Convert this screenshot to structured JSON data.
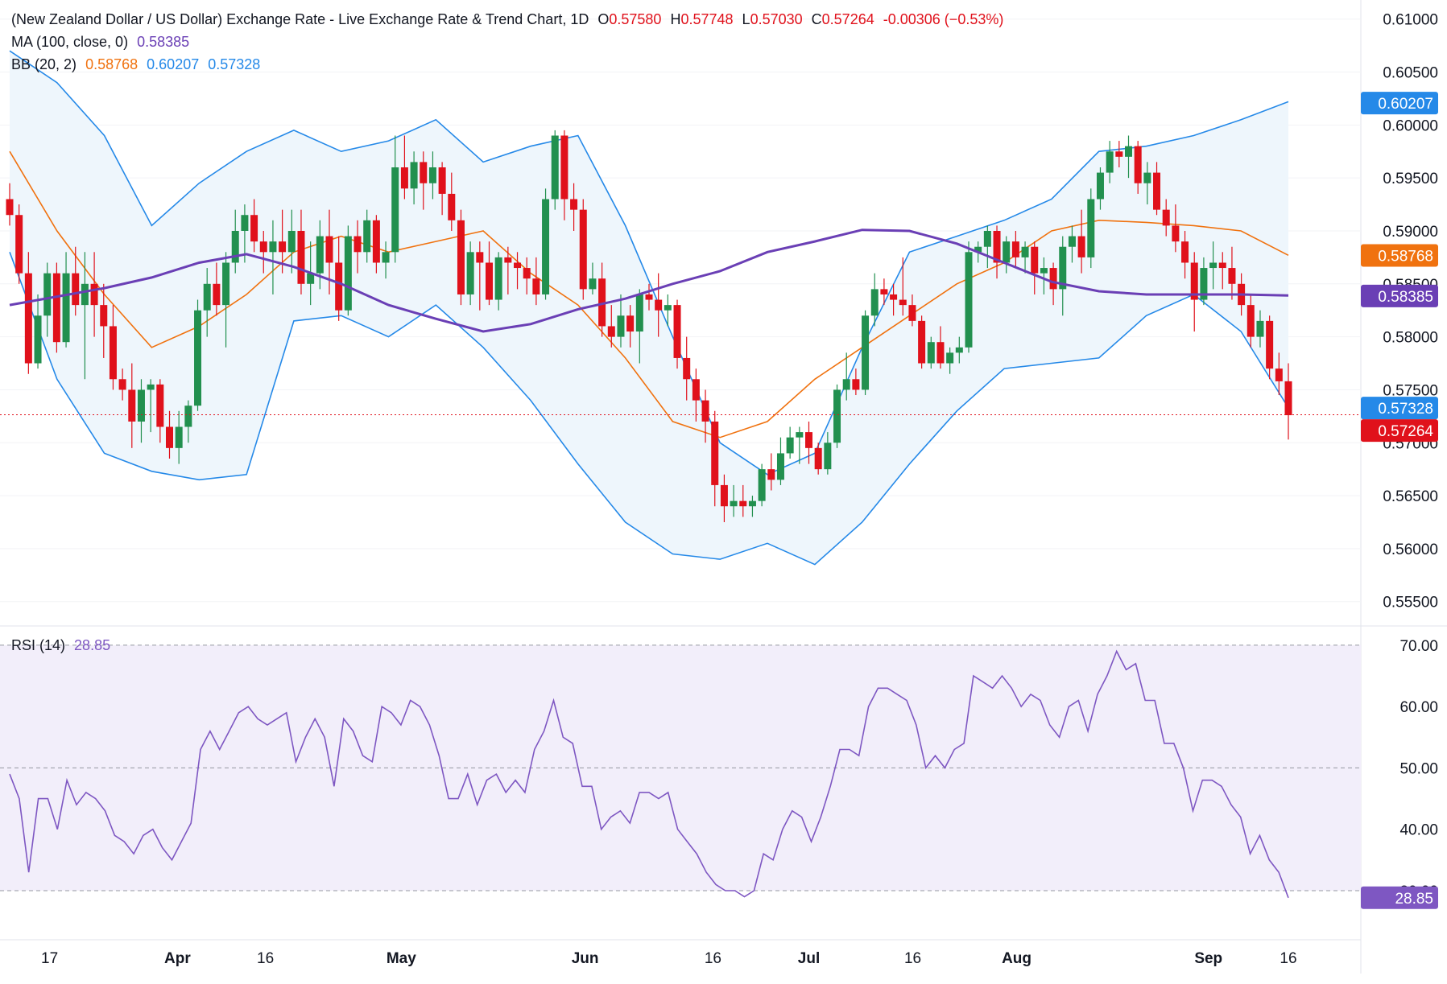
{
  "header": {
    "title": "(New Zealand Dollar / US Dollar) Exchange Rate - Live Exchange Rate & Trend Chart, 1D",
    "open_label": "O",
    "open": "0.57580",
    "high_label": "H",
    "high": "0.57748",
    "low_label": "L",
    "low": "0.57030",
    "close_label": "C",
    "close": "0.57264",
    "change": "-0.00306 (−0.53%)"
  },
  "indicators": {
    "ma": {
      "label": "MA (100, close, 0)",
      "value": "0.58385",
      "color": "#6a3fb5"
    },
    "bb": {
      "label": "BB (20, 2)",
      "basis": "0.58768",
      "upper": "0.60207",
      "lower": "0.57328",
      "basis_color": "#f0720f",
      "band_color": "#2589e8"
    },
    "rsi": {
      "label": "RSI (14)",
      "value": "28.85",
      "color": "#7e57c2"
    }
  },
  "colors": {
    "up": "#22904f",
    "down": "#e0111b",
    "band_fill": "#eef6fc",
    "rsi_fill": "#f2eefa"
  },
  "chart_data": [
    {
      "type": "candlestick",
      "title": "",
      "yticks": [
        "0.61000",
        "0.60500",
        "0.60000",
        "0.59500",
        "0.59000",
        "0.58500",
        "0.58000",
        "0.57500",
        "0.57000",
        "0.56500",
        "0.56000",
        "0.55500"
      ],
      "ylim": [
        0.5527,
        0.6118
      ],
      "xticks": [
        "17",
        "Apr",
        "16",
        "May",
        "Jun",
        "16",
        "Jul",
        "16",
        "Aug",
        "Sep",
        "16"
      ],
      "price_labels": [
        "0.60207",
        "0.58768",
        "0.58385",
        "0.57328",
        "0.57264"
      ],
      "ohlc": [
        [
          0.593,
          0.5945,
          0.5905,
          0.5915
        ],
        [
          0.5915,
          0.5925,
          0.585,
          0.586
        ],
        [
          0.586,
          0.588,
          0.5765,
          0.5775
        ],
        [
          0.5775,
          0.584,
          0.577,
          0.582
        ],
        [
          0.582,
          0.587,
          0.58,
          0.586
        ],
        [
          0.586,
          0.587,
          0.5785,
          0.5795
        ],
        [
          0.5795,
          0.588,
          0.579,
          0.586
        ],
        [
          0.586,
          0.5885,
          0.582,
          0.583
        ],
        [
          0.583,
          0.588,
          0.576,
          0.585
        ],
        [
          0.585,
          0.588,
          0.58,
          0.583
        ],
        [
          0.583,
          0.585,
          0.578,
          0.581
        ],
        [
          0.581,
          0.583,
          0.575,
          0.576
        ],
        [
          0.576,
          0.577,
          0.574,
          0.575
        ],
        [
          0.575,
          0.5775,
          0.5695,
          0.572
        ],
        [
          0.572,
          0.576,
          0.57,
          0.575
        ],
        [
          0.575,
          0.576,
          0.571,
          0.5755
        ],
        [
          0.5755,
          0.576,
          0.57,
          0.5715
        ],
        [
          0.5715,
          0.573,
          0.5685,
          0.5695
        ],
        [
          0.5695,
          0.573,
          0.568,
          0.5715
        ],
        [
          0.5715,
          0.574,
          0.57,
          0.5735
        ],
        [
          0.5735,
          0.5835,
          0.573,
          0.5825
        ],
        [
          0.5825,
          0.5865,
          0.58,
          0.585
        ],
        [
          0.585,
          0.587,
          0.582,
          0.583
        ],
        [
          0.583,
          0.588,
          0.579,
          0.587
        ],
        [
          0.587,
          0.592,
          0.586,
          0.59
        ],
        [
          0.59,
          0.5925,
          0.587,
          0.5915
        ],
        [
          0.5915,
          0.593,
          0.588,
          0.589
        ],
        [
          0.589,
          0.59,
          0.586,
          0.588
        ],
        [
          0.588,
          0.591,
          0.584,
          0.589
        ],
        [
          0.589,
          0.592,
          0.586,
          0.588
        ],
        [
          0.588,
          0.592,
          0.586,
          0.59
        ],
        [
          0.59,
          0.592,
          0.584,
          0.585
        ],
        [
          0.585,
          0.589,
          0.583,
          0.586
        ],
        [
          0.586,
          0.591,
          0.5845,
          0.5895
        ],
        [
          0.5895,
          0.592,
          0.584,
          0.587
        ],
        [
          0.587,
          0.5895,
          0.5815,
          0.5825
        ],
        [
          0.5825,
          0.5905,
          0.582,
          0.5895
        ],
        [
          0.5895,
          0.591,
          0.586,
          0.588
        ],
        [
          0.588,
          0.592,
          0.587,
          0.591
        ],
        [
          0.591,
          0.5915,
          0.586,
          0.587
        ],
        [
          0.587,
          0.589,
          0.5855,
          0.588
        ],
        [
          0.588,
          0.599,
          0.587,
          0.596
        ],
        [
          0.596,
          0.599,
          0.593,
          0.594
        ],
        [
          0.594,
          0.5975,
          0.5925,
          0.5965
        ],
        [
          0.5965,
          0.5975,
          0.592,
          0.5945
        ],
        [
          0.5945,
          0.5975,
          0.593,
          0.596
        ],
        [
          0.596,
          0.5965,
          0.5915,
          0.5935
        ],
        [
          0.5935,
          0.5955,
          0.59,
          0.591
        ],
        [
          0.591,
          0.592,
          0.583,
          0.584
        ],
        [
          0.584,
          0.589,
          0.583,
          0.588
        ],
        [
          0.588,
          0.589,
          0.5825,
          0.587
        ],
        [
          0.587,
          0.589,
          0.583,
          0.5835
        ],
        [
          0.5835,
          0.588,
          0.5825,
          0.5875
        ],
        [
          0.5875,
          0.5885,
          0.584,
          0.587
        ],
        [
          0.587,
          0.588,
          0.5845,
          0.5865
        ],
        [
          0.5865,
          0.5875,
          0.584,
          0.5855
        ],
        [
          0.5855,
          0.5875,
          0.583,
          0.584
        ],
        [
          0.584,
          0.594,
          0.5835,
          0.593
        ],
        [
          0.593,
          0.5995,
          0.592,
          0.599
        ],
        [
          0.599,
          0.5995,
          0.591,
          0.593
        ],
        [
          0.593,
          0.5945,
          0.59,
          0.592
        ],
        [
          0.592,
          0.593,
          0.5835,
          0.5845
        ],
        [
          0.5845,
          0.587,
          0.584,
          0.5855
        ],
        [
          0.5855,
          0.587,
          0.58,
          0.581
        ],
        [
          0.581,
          0.583,
          0.579,
          0.58
        ],
        [
          0.58,
          0.584,
          0.579,
          0.582
        ],
        [
          0.582,
          0.583,
          0.579,
          0.5805
        ],
        [
          0.5805,
          0.5845,
          0.5775,
          0.584
        ],
        [
          0.584,
          0.585,
          0.5825,
          0.5835
        ],
        [
          0.5835,
          0.586,
          0.58,
          0.5825
        ],
        [
          0.5825,
          0.584,
          0.581,
          0.583
        ],
        [
          0.583,
          0.5835,
          0.577,
          0.578
        ],
        [
          0.578,
          0.58,
          0.574,
          0.576
        ],
        [
          0.576,
          0.577,
          0.572,
          0.574
        ],
        [
          0.574,
          0.575,
          0.57,
          0.572
        ],
        [
          0.572,
          0.573,
          0.564,
          0.566
        ],
        [
          0.566,
          0.567,
          0.5625,
          0.564
        ],
        [
          0.564,
          0.566,
          0.563,
          0.5645
        ],
        [
          0.5645,
          0.566,
          0.563,
          0.564
        ],
        [
          0.564,
          0.565,
          0.563,
          0.5645
        ],
        [
          0.5645,
          0.568,
          0.564,
          0.5675
        ],
        [
          0.5675,
          0.569,
          0.5655,
          0.5665
        ],
        [
          0.5665,
          0.5705,
          0.566,
          0.569
        ],
        [
          0.569,
          0.5715,
          0.5685,
          0.5705
        ],
        [
          0.5705,
          0.5715,
          0.568,
          0.571
        ],
        [
          0.571,
          0.572,
          0.568,
          0.5695
        ],
        [
          0.5695,
          0.57,
          0.567,
          0.5675
        ],
        [
          0.5675,
          0.571,
          0.567,
          0.57
        ],
        [
          0.57,
          0.5755,
          0.5695,
          0.575
        ],
        [
          0.575,
          0.5785,
          0.574,
          0.576
        ],
        [
          0.576,
          0.577,
          0.5745,
          0.575
        ],
        [
          0.575,
          0.5825,
          0.5745,
          0.582
        ],
        [
          0.582,
          0.586,
          0.581,
          0.5845
        ],
        [
          0.5845,
          0.5855,
          0.583,
          0.584
        ],
        [
          0.584,
          0.585,
          0.582,
          0.5835
        ],
        [
          0.5835,
          0.5875,
          0.582,
          0.583
        ],
        [
          0.583,
          0.584,
          0.581,
          0.5815
        ],
        [
          0.5815,
          0.582,
          0.577,
          0.5775
        ],
        [
          0.5775,
          0.58,
          0.577,
          0.5795
        ],
        [
          0.5795,
          0.581,
          0.577,
          0.5775
        ],
        [
          0.5775,
          0.579,
          0.5765,
          0.5785
        ],
        [
          0.5785,
          0.58,
          0.5775,
          0.579
        ],
        [
          0.579,
          0.589,
          0.5785,
          0.588
        ],
        [
          0.588,
          0.589,
          0.587,
          0.5885
        ],
        [
          0.5885,
          0.5905,
          0.5865,
          0.59
        ],
        [
          0.59,
          0.5905,
          0.5855,
          0.587
        ],
        [
          0.587,
          0.5895,
          0.586,
          0.589
        ],
        [
          0.589,
          0.59,
          0.5865,
          0.5875
        ],
        [
          0.5875,
          0.589,
          0.586,
          0.5885
        ],
        [
          0.5885,
          0.589,
          0.584,
          0.586
        ],
        [
          0.586,
          0.5875,
          0.584,
          0.5865
        ],
        [
          0.5865,
          0.587,
          0.583,
          0.5845
        ],
        [
          0.5845,
          0.5895,
          0.582,
          0.5885
        ],
        [
          0.5885,
          0.5905,
          0.587,
          0.5895
        ],
        [
          0.5895,
          0.592,
          0.586,
          0.5875
        ],
        [
          0.5875,
          0.594,
          0.5865,
          0.593
        ],
        [
          0.593,
          0.596,
          0.592,
          0.5955
        ],
        [
          0.5955,
          0.5985,
          0.5945,
          0.5975
        ],
        [
          0.5975,
          0.5985,
          0.596,
          0.597
        ],
        [
          0.597,
          0.599,
          0.595,
          0.598
        ],
        [
          0.598,
          0.5985,
          0.5935,
          0.5945
        ],
        [
          0.5945,
          0.5965,
          0.5925,
          0.5955
        ],
        [
          0.5955,
          0.5965,
          0.5915,
          0.592
        ],
        [
          0.592,
          0.593,
          0.5895,
          0.5905
        ],
        [
          0.5905,
          0.5925,
          0.588,
          0.589
        ],
        [
          0.589,
          0.59,
          0.5855,
          0.587
        ],
        [
          0.587,
          0.588,
          0.5805,
          0.5835
        ],
        [
          0.5835,
          0.5875,
          0.583,
          0.5865
        ],
        [
          0.5865,
          0.589,
          0.5845,
          0.587
        ],
        [
          0.587,
          0.588,
          0.5845,
          0.5865
        ],
        [
          0.5865,
          0.5885,
          0.5835,
          0.585
        ],
        [
          0.585,
          0.586,
          0.582,
          0.583
        ],
        [
          0.583,
          0.584,
          0.579,
          0.58
        ],
        [
          0.58,
          0.5825,
          0.579,
          0.5815
        ],
        [
          0.5815,
          0.582,
          0.576,
          0.577
        ],
        [
          0.577,
          0.5785,
          0.5745,
          0.5758
        ],
        [
          0.5758,
          0.5775,
          0.5703,
          0.5726
        ]
      ],
      "ma100": [
        0.583,
        0.5838,
        0.5846,
        0.5856,
        0.587,
        0.5878,
        0.5866,
        0.585,
        0.583,
        0.5817,
        0.5805,
        0.5812,
        0.5826,
        0.5836,
        0.585,
        0.5862,
        0.588,
        0.589,
        0.5901,
        0.59,
        0.5888,
        0.587,
        0.5852,
        0.5843,
        0.584,
        0.584,
        0.584,
        0.5839
      ],
      "bb_upper": [
        0.607,
        0.604,
        0.599,
        0.5905,
        0.5945,
        0.5975,
        0.5995,
        0.5975,
        0.5985,
        0.6005,
        0.5965,
        0.598,
        0.599,
        0.5905,
        0.58,
        0.57,
        0.567,
        0.569,
        0.579,
        0.588,
        0.5895,
        0.591,
        0.593,
        0.5975,
        0.598,
        0.599,
        0.6005,
        0.6022
      ],
      "bb_basis": [
        0.5975,
        0.59,
        0.584,
        0.579,
        0.581,
        0.584,
        0.588,
        0.5895,
        0.588,
        0.589,
        0.59,
        0.586,
        0.583,
        0.578,
        0.572,
        0.5705,
        0.572,
        0.576,
        0.579,
        0.582,
        0.585,
        0.587,
        0.59,
        0.591,
        0.5908,
        0.5905,
        0.59,
        0.5877
      ],
      "bb_lower": [
        0.588,
        0.576,
        0.569,
        0.5673,
        0.5665,
        0.567,
        0.5815,
        0.582,
        0.58,
        0.583,
        0.579,
        0.574,
        0.568,
        0.5625,
        0.5595,
        0.559,
        0.5605,
        0.5585,
        0.5625,
        0.568,
        0.573,
        0.577,
        0.5775,
        0.578,
        0.582,
        0.584,
        0.5805,
        0.5733
      ]
    },
    {
      "type": "line",
      "title": "",
      "yticks": [
        "70.00",
        "60.00",
        "50.00",
        "40.00",
        "30.00"
      ],
      "ylim": [
        22,
        73
      ],
      "upper_band": 70,
      "lower_band": 30,
      "mid_line": 50,
      "y": [
        49,
        45,
        33,
        45,
        45,
        40,
        48,
        44,
        46,
        45,
        43,
        39,
        38,
        36,
        39,
        40,
        37,
        35,
        38,
        41,
        53,
        56,
        53,
        56,
        59,
        60,
        58,
        57,
        58,
        59,
        51,
        55,
        58,
        55,
        47,
        58,
        56,
        52,
        51,
        60,
        59,
        57,
        61,
        60,
        57,
        52,
        45,
        45,
        49,
        44,
        48,
        49,
        46,
        48,
        46,
        53,
        56,
        61,
        55,
        54,
        47,
        47,
        40,
        42,
        43,
        41,
        46,
        46,
        45,
        46,
        40,
        38,
        36,
        33,
        31,
        30,
        30,
        29,
        30,
        36,
        35,
        40,
        43,
        42,
        38,
        42,
        47,
        53,
        53,
        52,
        60,
        63,
        63,
        62,
        61,
        57,
        50,
        52,
        50,
        53,
        54,
        65,
        64,
        63,
        65,
        63,
        60,
        62,
        61,
        57,
        55,
        60,
        61,
        56,
        62,
        65,
        69,
        66,
        67,
        61,
        61,
        54,
        54,
        50,
        43,
        48,
        48,
        47,
        44,
        42,
        36,
        39,
        35,
        33,
        28.85
      ]
    }
  ]
}
